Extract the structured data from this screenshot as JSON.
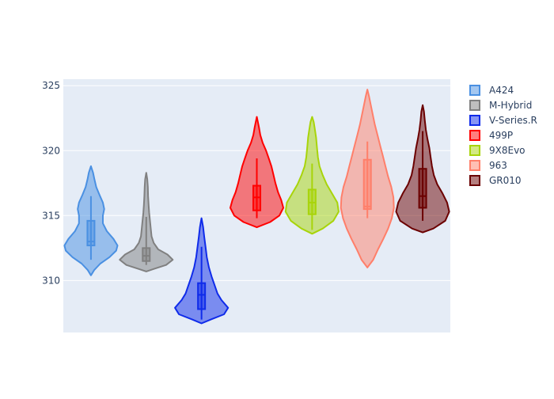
{
  "chart_data": {
    "type": "violin",
    "title": "",
    "xlabel": "",
    "ylabel": "",
    "ylim": [
      306.0,
      325.5
    ],
    "y_ticks": [
      310,
      315,
      320,
      325
    ],
    "grid": true,
    "legend_position": "right",
    "series": [
      {
        "name": "A424",
        "color": "#4a90e2",
        "min": 310.4,
        "max": 318.8,
        "q1": 312.7,
        "median": 313.0,
        "q3": 314.6,
        "whisker_low": 311.6,
        "whisker_high": 316.5,
        "profile": [
          [
            310.4,
            0.0
          ],
          [
            310.8,
            0.12
          ],
          [
            311.3,
            0.35
          ],
          [
            311.8,
            0.7
          ],
          [
            312.3,
            0.95
          ],
          [
            312.7,
            1.0
          ],
          [
            313.2,
            0.85
          ],
          [
            313.8,
            0.6
          ],
          [
            314.4,
            0.45
          ],
          [
            315.0,
            0.45
          ],
          [
            315.5,
            0.5
          ],
          [
            316.0,
            0.45
          ],
          [
            316.6,
            0.32
          ],
          [
            317.2,
            0.2
          ],
          [
            317.8,
            0.13
          ],
          [
            318.3,
            0.08
          ],
          [
            318.8,
            0.0
          ]
        ]
      },
      {
        "name": "M-Hybrid",
        "color": "#808080",
        "min": 310.7,
        "max": 318.3,
        "q1": 311.5,
        "median": 311.9,
        "q3": 312.5,
        "whisker_low": 311.2,
        "whisker_high": 314.9,
        "profile": [
          [
            310.7,
            0.0
          ],
          [
            310.9,
            0.3
          ],
          [
            311.2,
            0.75
          ],
          [
            311.6,
            1.0
          ],
          [
            312.0,
            0.8
          ],
          [
            312.4,
            0.45
          ],
          [
            312.9,
            0.28
          ],
          [
            313.4,
            0.2
          ],
          [
            314.0,
            0.17
          ],
          [
            314.6,
            0.14
          ],
          [
            315.2,
            0.11
          ],
          [
            315.8,
            0.09
          ],
          [
            316.5,
            0.07
          ],
          [
            317.2,
            0.06
          ],
          [
            317.8,
            0.04
          ],
          [
            318.3,
            0.0
          ]
        ]
      },
      {
        "name": "V-Series.R",
        "color": "#0f2bea",
        "min": 306.7,
        "max": 314.8,
        "q1": 307.8,
        "median": 308.9,
        "q3": 309.8,
        "whisker_low": 307.0,
        "whisker_high": 312.6,
        "profile": [
          [
            306.7,
            0.0
          ],
          [
            307.0,
            0.35
          ],
          [
            307.4,
            0.85
          ],
          [
            307.9,
            1.0
          ],
          [
            308.5,
            0.75
          ],
          [
            309.0,
            0.6
          ],
          [
            309.6,
            0.5
          ],
          [
            310.3,
            0.38
          ],
          [
            311.0,
            0.28
          ],
          [
            311.8,
            0.2
          ],
          [
            312.6,
            0.15
          ],
          [
            313.4,
            0.1
          ],
          [
            314.1,
            0.06
          ],
          [
            314.8,
            0.0
          ]
        ]
      },
      {
        "name": "499P",
        "color": "#ff0000",
        "min": 314.1,
        "max": 322.6,
        "q1": 315.4,
        "median": 316.4,
        "q3": 317.3,
        "whisker_low": 314.8,
        "whisker_high": 319.4,
        "profile": [
          [
            314.1,
            0.0
          ],
          [
            314.5,
            0.5
          ],
          [
            315.0,
            0.85
          ],
          [
            315.6,
            1.0
          ],
          [
            316.2,
            0.92
          ],
          [
            316.8,
            0.8
          ],
          [
            317.5,
            0.7
          ],
          [
            318.2,
            0.62
          ],
          [
            318.8,
            0.55
          ],
          [
            319.4,
            0.45
          ],
          [
            320.0,
            0.35
          ],
          [
            320.6,
            0.22
          ],
          [
            321.2,
            0.13
          ],
          [
            321.8,
            0.08
          ],
          [
            322.6,
            0.0
          ]
        ]
      },
      {
        "name": "9X8Evo",
        "color": "#a8d40a",
        "min": 313.6,
        "max": 322.6,
        "q1": 315.1,
        "median": 316.0,
        "q3": 317.0,
        "whisker_low": 313.9,
        "whisker_high": 319.0,
        "profile": [
          [
            313.6,
            0.0
          ],
          [
            314.0,
            0.4
          ],
          [
            314.6,
            0.8
          ],
          [
            315.3,
            1.0
          ],
          [
            316.0,
            0.95
          ],
          [
            316.7,
            0.75
          ],
          [
            317.4,
            0.55
          ],
          [
            318.1,
            0.4
          ],
          [
            318.8,
            0.28
          ],
          [
            319.5,
            0.22
          ],
          [
            320.3,
            0.18
          ],
          [
            321.0,
            0.15
          ],
          [
            321.7,
            0.1
          ],
          [
            322.2,
            0.06
          ],
          [
            322.6,
            0.0
          ]
        ]
      },
      {
        "name": "963",
        "color": "#ff7f6a",
        "min": 311.0,
        "max": 324.7,
        "q1": 315.5,
        "median": 315.7,
        "q3": 319.3,
        "whisker_low": 314.8,
        "whisker_high": 320.7,
        "profile": [
          [
            311.0,
            0.0
          ],
          [
            311.6,
            0.22
          ],
          [
            312.4,
            0.4
          ],
          [
            313.2,
            0.6
          ],
          [
            314.0,
            0.78
          ],
          [
            314.8,
            0.92
          ],
          [
            315.6,
            1.0
          ],
          [
            316.4,
            0.98
          ],
          [
            317.2,
            0.9
          ],
          [
            318.0,
            0.78
          ],
          [
            318.8,
            0.68
          ],
          [
            319.6,
            0.58
          ],
          [
            320.4,
            0.48
          ],
          [
            321.2,
            0.38
          ],
          [
            322.0,
            0.28
          ],
          [
            322.8,
            0.2
          ],
          [
            323.6,
            0.12
          ],
          [
            324.2,
            0.06
          ],
          [
            324.7,
            0.0
          ]
        ]
      },
      {
        "name": "GR010",
        "color": "#6b0000",
        "min": 313.7,
        "max": 323.5,
        "q1": 315.6,
        "median": 316.5,
        "q3": 318.6,
        "whisker_low": 314.6,
        "whisker_high": 321.5,
        "profile": [
          [
            313.7,
            0.0
          ],
          [
            314.0,
            0.4
          ],
          [
            314.6,
            0.85
          ],
          [
            315.3,
            1.0
          ],
          [
            316.0,
            0.92
          ],
          [
            316.7,
            0.75
          ],
          [
            317.4,
            0.55
          ],
          [
            318.1,
            0.42
          ],
          [
            318.8,
            0.35
          ],
          [
            319.5,
            0.3
          ],
          [
            320.2,
            0.25
          ],
          [
            320.9,
            0.18
          ],
          [
            321.6,
            0.12
          ],
          [
            322.3,
            0.08
          ],
          [
            323.0,
            0.05
          ],
          [
            323.5,
            0.0
          ]
        ]
      }
    ]
  }
}
